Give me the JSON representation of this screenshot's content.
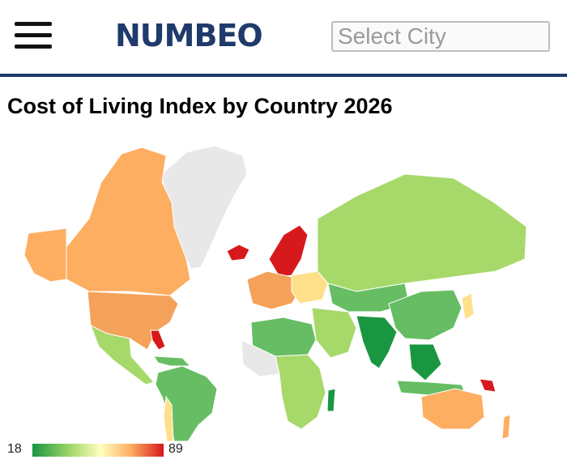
{
  "header": {
    "menu_icon": "hamburger-menu-icon",
    "logo_text": "NUMBEO",
    "city_select_placeholder": "Select City"
  },
  "page": {
    "title": "Cost of Living Index by Country 2026"
  },
  "legend": {
    "min": "18",
    "max": "89",
    "gradient_colors": [
      "#1a9641",
      "#a6d96a",
      "#ffffbf",
      "#fdae61",
      "#d7191c"
    ]
  },
  "map_colors": {
    "no_data": "#e8e8e8",
    "very_low": "#1a9641",
    "low": "#66bd63",
    "lower_mid": "#a6d96a",
    "mid": "#ffffbf",
    "upper_mid": "#fdd49e",
    "high": "#fdae61",
    "very_high": "#f46d43",
    "highest": "#d7191c"
  },
  "brand_color": "#1f3a6b"
}
